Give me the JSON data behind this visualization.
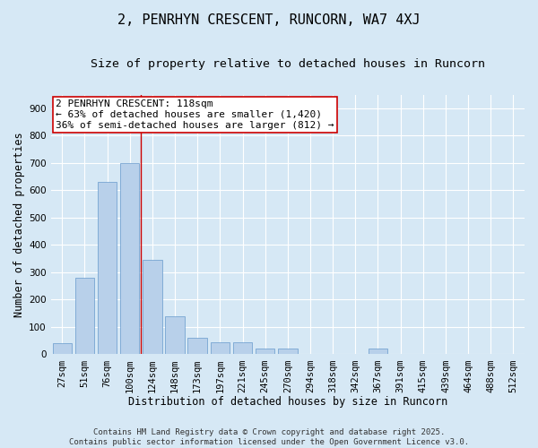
{
  "title": "2, PENRHYN CRESCENT, RUNCORN, WA7 4XJ",
  "subtitle": "Size of property relative to detached houses in Runcorn",
  "xlabel": "Distribution of detached houses by size in Runcorn",
  "ylabel": "Number of detached properties",
  "categories": [
    "27sqm",
    "51sqm",
    "76sqm",
    "100sqm",
    "124sqm",
    "148sqm",
    "173sqm",
    "197sqm",
    "221sqm",
    "245sqm",
    "270sqm",
    "294sqm",
    "318sqm",
    "342sqm",
    "367sqm",
    "391sqm",
    "415sqm",
    "439sqm",
    "464sqm",
    "488sqm",
    "512sqm"
  ],
  "values": [
    40,
    280,
    630,
    700,
    345,
    140,
    60,
    45,
    45,
    20,
    20,
    0,
    0,
    0,
    20,
    0,
    0,
    0,
    0,
    0,
    0
  ],
  "bar_color": "#b8d0ea",
  "bar_edge_color": "#6699cc",
  "background_color": "#d6e8f5",
  "grid_color": "#ffffff",
  "vline_x": 3.5,
  "vline_color": "#cc0000",
  "annotation_text": "2 PENRHYN CRESCENT: 118sqm\n← 63% of detached houses are smaller (1,420)\n36% of semi-detached houses are larger (812) →",
  "annotation_box_color": "#ffffff",
  "annotation_box_edge": "#cc0000",
  "ylim": [
    0,
    950
  ],
  "yticks": [
    0,
    100,
    200,
    300,
    400,
    500,
    600,
    700,
    800,
    900
  ],
  "footer": "Contains HM Land Registry data © Crown copyright and database right 2025.\nContains public sector information licensed under the Open Government Licence v3.0.",
  "title_fontsize": 11,
  "subtitle_fontsize": 9.5,
  "label_fontsize": 8.5,
  "tick_fontsize": 7.5,
  "footer_fontsize": 6.5,
  "annot_fontsize": 8
}
